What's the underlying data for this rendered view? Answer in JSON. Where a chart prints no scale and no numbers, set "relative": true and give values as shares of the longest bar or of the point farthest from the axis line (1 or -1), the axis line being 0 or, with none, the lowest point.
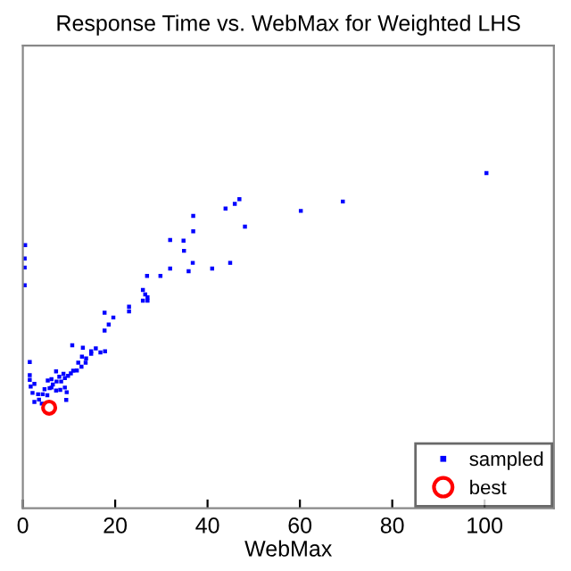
{
  "chart_data": {
    "type": "scatter",
    "title": "Response Time vs. WebMax for Weighted LHS",
    "xlabel": "WebMax",
    "relative": true,
    "xlim": [
      0,
      115
    ],
    "xticks": [
      0,
      20,
      40,
      60,
      80,
      100
    ],
    "grid": false,
    "legend": "bottom right",
    "series": [
      {
        "name": "sampled",
        "color": "#0000ff",
        "marker": "square",
        "x": [
          100.4,
          69.3,
          60.2,
          46.9,
          45.9,
          43.9,
          48.1,
          36.9,
          36.9,
          31.9,
          34.8,
          0.5,
          0.4,
          0.4,
          0.4,
          34.9,
          36.8,
          31.9,
          29.8,
          26.9,
          35.9,
          41.0,
          44.9,
          26.0,
          26.5,
          27.0,
          26.0,
          27.0,
          23.0,
          23.0,
          17.7,
          19.6,
          18.6,
          17.7,
          17.8,
          16.8,
          14.8,
          15.8,
          14.8,
          13.0,
          10.7,
          12.8,
          13.7,
          13.6,
          12.0,
          12.7,
          11.7,
          10.9,
          10.4,
          9.8,
          9.1,
          7.9,
          7.2,
          8.8,
          8.3,
          7.3,
          6.5,
          6.2,
          7.2,
          8.1,
          9.1,
          9.5,
          9.4,
          6.2,
          5.4,
          5.8,
          4.7,
          4.3,
          5.3,
          4.1,
          3.5,
          2.5,
          3.3,
          2.1,
          1.5,
          1.5,
          1.5,
          2.5,
          1.7
        ],
        "values": [
          1.0,
          0.915,
          0.887,
          0.922,
          0.908,
          0.894,
          0.84,
          0.872,
          0.826,
          0.8,
          0.798,
          0.785,
          0.745,
          0.718,
          0.665,
          0.768,
          0.732,
          0.715,
          0.693,
          0.693,
          0.707,
          0.715,
          0.732,
          0.651,
          0.638,
          0.629,
          0.619,
          0.619,
          0.601,
          0.587,
          0.583,
          0.569,
          0.548,
          0.53,
          0.468,
          0.465,
          0.468,
          0.477,
          0.461,
          0.479,
          0.486,
          0.452,
          0.447,
          0.434,
          0.434,
          0.422,
          0.411,
          0.41,
          0.402,
          0.395,
          0.388,
          0.392,
          0.408,
          0.401,
          0.378,
          0.378,
          0.369,
          0.36,
          0.351,
          0.353,
          0.36,
          0.346,
          0.323,
          0.385,
          0.381,
          0.358,
          0.355,
          0.34,
          0.337,
          0.312,
          0.324,
          0.317,
          0.34,
          0.344,
          0.397,
          0.383,
          0.436,
          0.371,
          0.363
        ]
      },
      {
        "name": "best",
        "color": "#ff0000",
        "marker": "circle",
        "x": [
          5.7
        ],
        "values": [
          0.3
        ]
      }
    ]
  }
}
